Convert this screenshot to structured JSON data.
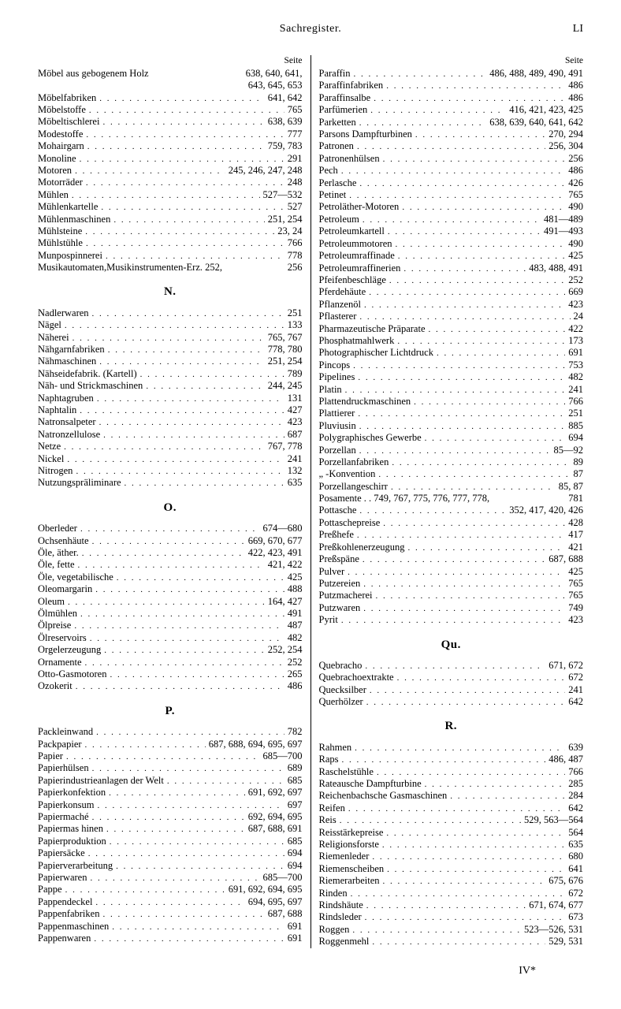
{
  "header": {
    "title": "Sachregister.",
    "page_number": "LI"
  },
  "seite_label": "Seite",
  "footer": "IV*",
  "left": {
    "groups": [
      {
        "entries": [
          {
            "term": "Möbel aus gebogenem Holz",
            "pages": "638, 640, 641,",
            "nodots": true
          },
          {
            "term": "",
            "pages": "643, 645,  653",
            "cont": true
          },
          {
            "term": "Möbelfabriken",
            "pages": "641,  642"
          },
          {
            "term": "Möbelstoffe",
            "pages": "765"
          },
          {
            "term": "Möbeltischlerei",
            "pages": "638,  639"
          },
          {
            "term": "Modestoffe",
            "pages": "777"
          },
          {
            "term": "Mohairgarn",
            "pages": "759,  783"
          },
          {
            "term": "Monoline",
            "pages": "291"
          },
          {
            "term": "Motoren",
            "pages": "245, 246, 247,  248"
          },
          {
            "term": "Motorräder",
            "pages": "248"
          },
          {
            "term": "Mühlen",
            "pages": "527—532"
          },
          {
            "term": "Mühlenkartelle",
            "pages": "527"
          },
          {
            "term": "Mühlenmaschinen",
            "pages": "251,  254"
          },
          {
            "term": "Mühlsteine",
            "pages": "23,   24"
          },
          {
            "term": "Mühlstühle",
            "pages": "766"
          },
          {
            "term": "Munpospinnerei",
            "pages": "778"
          },
          {
            "term": "Musikautomaten,Musikinstrumenten-Erz. 252,",
            "pages": "256",
            "nodots": true
          }
        ]
      },
      {
        "letter": "N.",
        "entries": [
          {
            "term": "Nadlerwaren",
            "pages": "251"
          },
          {
            "term": "Nägel",
            "pages": "133"
          },
          {
            "term": "Näherei",
            "pages": "765,  767"
          },
          {
            "term": "Nähgarnfabriken",
            "pages": "778,  780"
          },
          {
            "term": "Nähmaschinen",
            "pages": "251,  254"
          },
          {
            "term": "Nähseidefabrik. (Kartell)",
            "pages": "789"
          },
          {
            "term": "Näh- und Strickmaschinen",
            "pages": "244,  245"
          },
          {
            "term": "Naphtagruben",
            "pages": "131"
          },
          {
            "term": "Naphtalin",
            "pages": "427"
          },
          {
            "term": "Natronsalpeter",
            "pages": "423"
          },
          {
            "term": "Natronzellulose",
            "pages": "687"
          },
          {
            "term": "Netze",
            "pages": "767,  778"
          },
          {
            "term": "Nickel",
            "pages": "241"
          },
          {
            "term": "Nitrogen",
            "pages": "132"
          },
          {
            "term": "Nutzungspräliminare",
            "pages": "635"
          }
        ]
      },
      {
        "letter": "O.",
        "entries": [
          {
            "term": "Oberleder",
            "pages": "674—680"
          },
          {
            "term": "Ochsenhäute",
            "pages": "669, 670,  677"
          },
          {
            "term": "Öle, äther.",
            "pages": "422, 423,  491"
          },
          {
            "term": "Öle, fette",
            "pages": "421,  422"
          },
          {
            "term": "Öle, vegetabilische",
            "pages": "425"
          },
          {
            "term": "Oleomargarin",
            "pages": "488"
          },
          {
            "term": "Oleum",
            "pages": "164,  427"
          },
          {
            "term": "Ölmühlen",
            "pages": "491"
          },
          {
            "term": "Ölpreise",
            "pages": "487"
          },
          {
            "term": "Ölreservoirs",
            "pages": "482"
          },
          {
            "term": "Orgelerzeugung",
            "pages": "252,  254"
          },
          {
            "term": "Ornamente",
            "pages": "252"
          },
          {
            "term": "Otto-Gasmotoren",
            "pages": "265"
          },
          {
            "term": "Ozokerit",
            "pages": "486"
          }
        ]
      },
      {
        "letter": "P.",
        "entries": [
          {
            "term": "Packleinwand",
            "pages": "782"
          },
          {
            "term": "Packpapier",
            "pages": "687, 688, 694, 695,  697"
          },
          {
            "term": "Papier",
            "pages": "685—700"
          },
          {
            "term": "Papierhülsen",
            "pages": "689"
          },
          {
            "term": "Papierindustrieanlagen der Welt",
            "pages": "685"
          },
          {
            "term": "Papierkonfektion",
            "pages": "691, 692,  697"
          },
          {
            "term": "Papierkonsum",
            "pages": "697"
          },
          {
            "term": "Papiermaché",
            "pages": "692, 694,  695"
          },
          {
            "term": "Papiermas hinen",
            "pages": "687, 688,  691"
          },
          {
            "term": "Papierproduktion",
            "pages": "685"
          },
          {
            "term": "Papiersäcke",
            "pages": "694"
          },
          {
            "term": "Papierverarbeitung",
            "pages": "694"
          },
          {
            "term": "Papierwaren",
            "pages": "685—700"
          },
          {
            "term": "Pappe",
            "pages": "691, 692, 694,  695"
          },
          {
            "term": "Pappendeckel",
            "pages": "694, 695,  697"
          },
          {
            "term": "Pappenfabriken",
            "pages": "687,  688"
          },
          {
            "term": "Pappenmaschinen",
            "pages": "691"
          },
          {
            "term": "Pappenwaren",
            "pages": "691"
          }
        ]
      }
    ]
  },
  "right": {
    "groups": [
      {
        "entries": [
          {
            "term": "Paraffin",
            "pages": "486, 488, 489, 490,  491"
          },
          {
            "term": "Paraffinfabriken",
            "pages": "486"
          },
          {
            "term": "Paraffinsalbe",
            "pages": "486"
          },
          {
            "term": "Parfümerien",
            "pages": "416, 421, 423,  425"
          },
          {
            "term": "Parketten",
            "pages": "638, 639, 640, 641,  642"
          },
          {
            "term": "Parsons Dampfturbinen",
            "pages": "270,  294"
          },
          {
            "term": "Patronen",
            "pages": "256,  304"
          },
          {
            "term": "Patronenhülsen",
            "pages": "256"
          },
          {
            "term": "Pech",
            "pages": "486"
          },
          {
            "term": "Perlasche",
            "pages": "426"
          },
          {
            "term": "Petinet",
            "pages": "765"
          },
          {
            "term": "Petroläther-Motoren",
            "pages": "490"
          },
          {
            "term": "Petroleum",
            "pages": "481—489"
          },
          {
            "term": "Petroleumkartell",
            "pages": "491—493"
          },
          {
            "term": "Petroleummotoren",
            "pages": "490"
          },
          {
            "term": "Petroleumraffinade",
            "pages": "425"
          },
          {
            "term": "Petroleumraffinerien",
            "pages": "483, 488,  491"
          },
          {
            "term": "Pfeifenbeschläge",
            "pages": "252"
          },
          {
            "term": "Pferdehäute",
            "pages": "669"
          },
          {
            "term": "Pflanzenöl",
            "pages": "423"
          },
          {
            "term": "Pflasterer",
            "pages": "24"
          },
          {
            "term": "Pharmazeutische Präparate",
            "pages": "422"
          },
          {
            "term": "Phosphatmahlwerk",
            "pages": "173"
          },
          {
            "term": "Photographischer Lichtdruck",
            "pages": "691"
          },
          {
            "term": "Pincops",
            "pages": "753"
          },
          {
            "term": "Pipelines",
            "pages": "482"
          },
          {
            "term": "Platin",
            "pages": "241"
          },
          {
            "term": "Plattendruckmaschinen",
            "pages": "766"
          },
          {
            "term": "Plattierer",
            "pages": "251"
          },
          {
            "term": "Pluviusin",
            "pages": "885"
          },
          {
            "term": "Polygraphisches Gewerbe",
            "pages": "694"
          },
          {
            "term": "Porzellan",
            "pages": "85—92"
          },
          {
            "term": "Porzellanfabriken",
            "pages": "89"
          },
          {
            "term": "        „        -Konvention",
            "pages": "87"
          },
          {
            "term": "Porzellangeschirr",
            "pages": "85,   87"
          },
          {
            "term": "Posamente . . 749, 767, 775, 776, 777, 778,",
            "pages": "781",
            "nodots": true
          },
          {
            "term": "Pottasche",
            "pages": "352, 417, 420,  426"
          },
          {
            "term": "Pottaschepreise",
            "pages": "428"
          },
          {
            "term": "Preßhefe",
            "pages": "417"
          },
          {
            "term": "Preßkohlenerzeugung",
            "pages": "421"
          },
          {
            "term": "Preßspäne",
            "pages": "687,  688"
          },
          {
            "term": "Pulver",
            "pages": "425"
          },
          {
            "term": "Putzereien",
            "pages": "765"
          },
          {
            "term": "Putzmacherei",
            "pages": "765"
          },
          {
            "term": "Putzwaren",
            "pages": "749"
          },
          {
            "term": "Pyrit",
            "pages": "423"
          }
        ]
      },
      {
        "letter": "Qu.",
        "entries": [
          {
            "term": "Quebracho",
            "pages": "671,  672"
          },
          {
            "term": "Quebrachoextrakte",
            "pages": "672"
          },
          {
            "term": "Quecksilber",
            "pages": "241"
          },
          {
            "term": "Querhölzer",
            "pages": "642"
          }
        ]
      },
      {
        "letter": "R.",
        "entries": [
          {
            "term": "Rahmen",
            "pages": "639"
          },
          {
            "term": "Raps",
            "pages": "486,  487"
          },
          {
            "term": "Raschelstühle",
            "pages": "766"
          },
          {
            "term": "Rateausche Dampfturbine",
            "pages": "285"
          },
          {
            "term": "Reichenbachsche Gasmaschinen",
            "pages": "284"
          },
          {
            "term": "Reifen",
            "pages": "642"
          },
          {
            "term": "Reis",
            "pages": "529, 563—564"
          },
          {
            "term": "Reisstärkepreise",
            "pages": "564"
          },
          {
            "term": "Religionsforste",
            "pages": "635"
          },
          {
            "term": "Riemenleder",
            "pages": "680"
          },
          {
            "term": "Riemenscheiben",
            "pages": "641"
          },
          {
            "term": "Riemerarbeiten",
            "pages": "675,  676"
          },
          {
            "term": "Rinden",
            "pages": "672"
          },
          {
            "term": "Rindshäute",
            "pages": "671, 674,  677"
          },
          {
            "term": "Rindsleder",
            "pages": "673"
          },
          {
            "term": "Roggen",
            "pages": "523—526,  531"
          },
          {
            "term": "Roggenmehl",
            "pages": "529,  531"
          }
        ]
      }
    ]
  }
}
